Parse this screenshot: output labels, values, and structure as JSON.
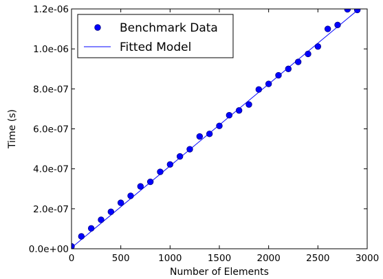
{
  "chart_data": {
    "type": "scatter",
    "title": "",
    "xlabel": "Number of Elements",
    "ylabel": "Time (s)",
    "xlim": [
      0,
      3000
    ],
    "ylim": [
      0,
      1.2e-06
    ],
    "x_ticks": [
      0,
      500,
      1000,
      1500,
      2000,
      2500,
      3000
    ],
    "x_tick_labels": [
      "0",
      "500",
      "1000",
      "1500",
      "2000",
      "2500",
      "3000"
    ],
    "y_ticks": [
      0,
      2e-07,
      4e-07,
      6e-07,
      8e-07,
      1e-06,
      1.2e-06
    ],
    "y_tick_labels": [
      "0.0e+00",
      "2.0e-07",
      "4.0e-07",
      "6.0e-07",
      "8.0e-07",
      "1.0e-06",
      "1.2e-06"
    ],
    "grid": false,
    "legend_position": "top-left",
    "colors": {
      "data": "#0000ff",
      "data_edge": "#000080",
      "fit": "#0000ff"
    },
    "series": [
      {
        "name": "Benchmark Data",
        "kind": "scatter",
        "x": [
          0,
          100,
          200,
          300,
          400,
          500,
          600,
          700,
          800,
          900,
          1000,
          1100,
          1200,
          1300,
          1400,
          1500,
          1600,
          1700,
          1800,
          1900,
          2000,
          2100,
          2200,
          2300,
          2400,
          2500,
          2600,
          2700,
          2800,
          2900
        ],
        "y": [
          1.2e-08,
          6.2e-08,
          1.02e-07,
          1.45e-07,
          1.85e-07,
          2.3e-07,
          2.65e-07,
          3.12e-07,
          3.35e-07,
          3.85e-07,
          4.22e-07,
          4.62e-07,
          4.98e-07,
          5.62e-07,
          5.75e-07,
          6.15e-07,
          6.68e-07,
          6.92e-07,
          7.22e-07,
          7.97e-07,
          8.25e-07,
          8.68e-07,
          9e-07,
          9.35e-07,
          9.75e-07,
          1.012e-06,
          1.1e-06,
          1.12e-06,
          1.198e-06,
          1.195e-06
        ]
      },
      {
        "name": "Fitted Model",
        "kind": "line",
        "x": [
          0,
          2935
        ],
        "y": [
          5e-09,
          1.207e-06
        ]
      }
    ]
  }
}
